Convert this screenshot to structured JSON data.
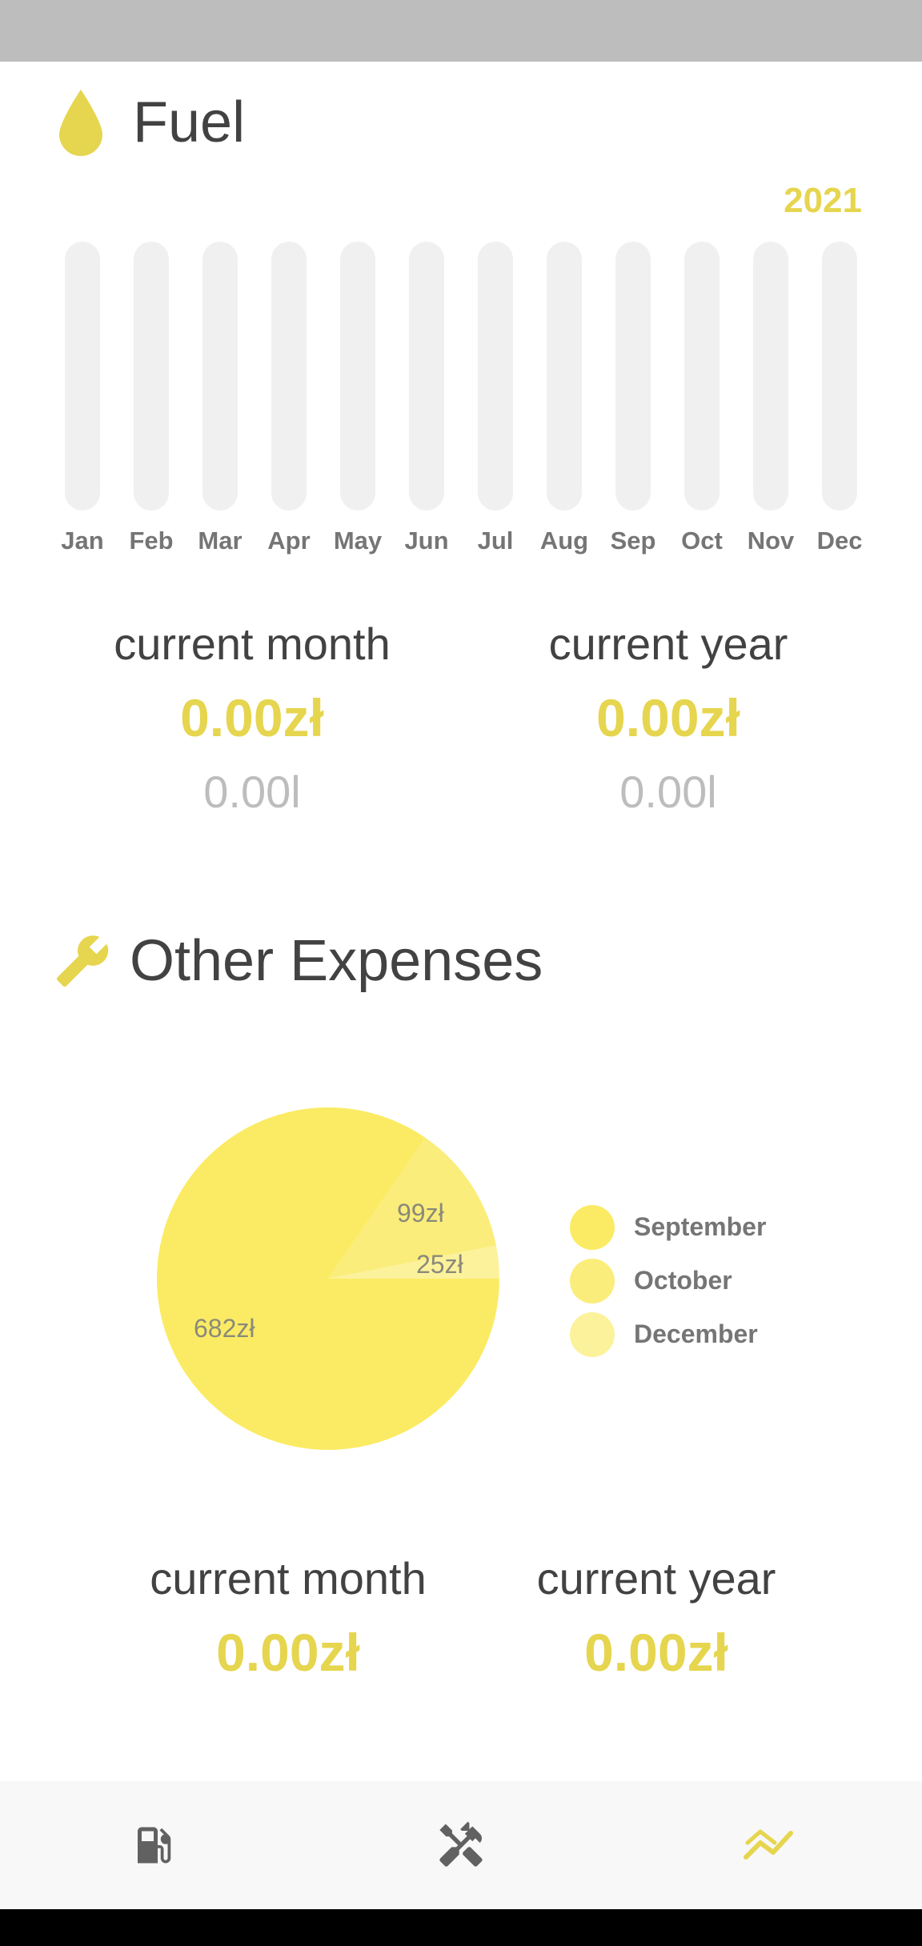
{
  "colors": {
    "accent": "#e6d54e",
    "pie_september": "#fbeb64",
    "pie_october": "#fbed7b",
    "pie_december": "#fcf29c",
    "status_bar": "#bdbdbd",
    "track": "#f0f0f0"
  },
  "fuel": {
    "title": "Fuel",
    "icon": "fuel-drop-icon",
    "year": "2021",
    "current_month_label": "current month",
    "current_month_cost": "0.00zł",
    "current_month_volume": "0.00l",
    "current_year_label": "current year",
    "current_year_cost": "0.00zł",
    "current_year_volume": "0.00l"
  },
  "other_expenses": {
    "title": "Other Expenses",
    "icon": "wrench-icon",
    "current_month_label": "current month",
    "current_month_cost": "0.00zł",
    "current_year_label": "current year",
    "current_year_cost": "0.00zł"
  },
  "chart_data": [
    {
      "type": "bar",
      "title": "Fuel",
      "year": "2021",
      "categories": [
        "Jan",
        "Feb",
        "Mar",
        "Apr",
        "May",
        "Jun",
        "Jul",
        "Aug",
        "Sep",
        "Oct",
        "Nov",
        "Dec"
      ],
      "values": [
        0,
        0,
        0,
        0,
        0,
        0,
        0,
        0,
        0,
        0,
        0,
        0
      ]
    },
    {
      "type": "pie",
      "title": "Other Expenses",
      "slices": [
        {
          "name": "September",
          "value": 682,
          "label": "682zł"
        },
        {
          "name": "October",
          "value": 99,
          "label": "99zł"
        },
        {
          "name": "December",
          "value": 25,
          "label": "25zł"
        }
      ],
      "legend": [
        "September",
        "October",
        "December"
      ]
    }
  ],
  "nav": {
    "items": [
      {
        "name": "fuel-pump-icon"
      },
      {
        "name": "tools-icon"
      },
      {
        "name": "trend-chart-icon",
        "active": true
      }
    ]
  }
}
